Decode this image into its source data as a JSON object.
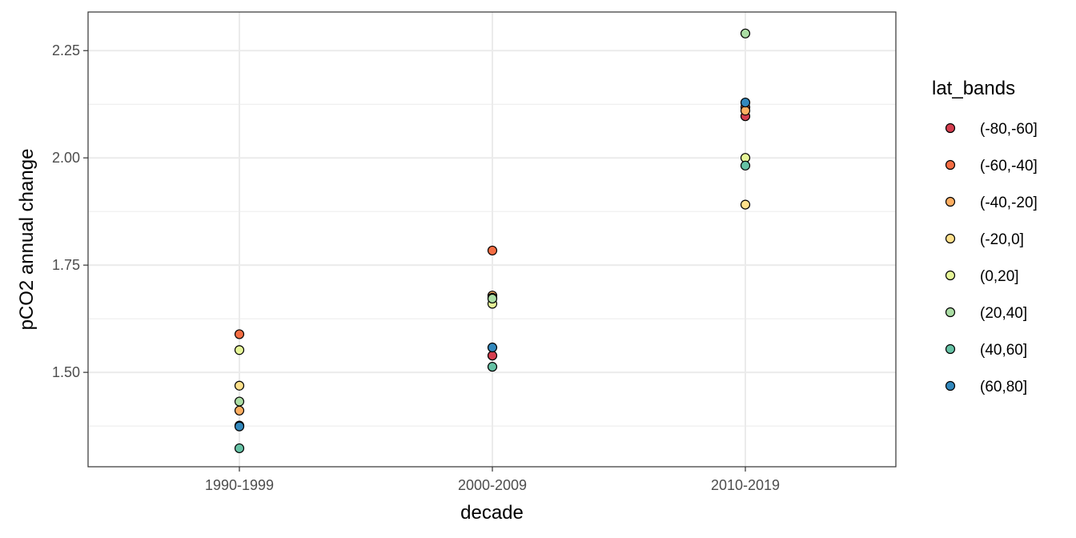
{
  "chart_data": {
    "type": "scatter",
    "xlabel": "decade",
    "ylabel": "pCO2 annual change",
    "categories": [
      "1990-1999",
      "2000-2009",
      "2010-2019"
    ],
    "ylim": [
      1.28,
      2.34
    ],
    "y_ticks": [
      1.5,
      1.75,
      2.0,
      2.25
    ],
    "y_tick_labels": [
      "1.50",
      "1.75",
      "2.00",
      "2.25"
    ],
    "grid": true,
    "legend": {
      "title": "lat_bands",
      "position": "right"
    },
    "series": [
      {
        "name": "(-80,-60]",
        "color": "#d53e4f",
        "values": [
          1.376,
          1.539,
          2.097
        ]
      },
      {
        "name": "(-60,-40]",
        "color": "#f46d43",
        "values": [
          1.589,
          1.784,
          2.118
        ]
      },
      {
        "name": "(-40,-20]",
        "color": "#fdae61",
        "values": [
          1.411,
          1.679,
          2.11
        ]
      },
      {
        "name": "(-20,0]",
        "color": "#fee08b",
        "values": [
          1.469,
          1.674,
          1.891
        ]
      },
      {
        "name": "(0,20]",
        "color": "#e6f598",
        "values": [
          1.552,
          1.66,
          2.0
        ]
      },
      {
        "name": "(20,40]",
        "color": "#abdda4",
        "values": [
          1.432,
          1.672,
          2.29
        ]
      },
      {
        "name": "(40,60]",
        "color": "#66c2a5",
        "values": [
          1.323,
          1.513,
          1.982
        ]
      },
      {
        "name": "(60,80]",
        "color": "#3288bd",
        "values": [
          1.374,
          1.558,
          2.129
        ]
      }
    ]
  }
}
